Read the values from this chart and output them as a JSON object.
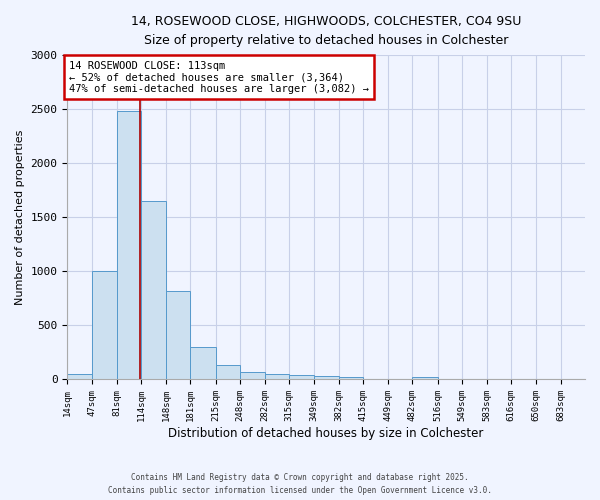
{
  "title_line1": "14, ROSEWOOD CLOSE, HIGHWOODS, COLCHESTER, CO4 9SU",
  "title_line2": "Size of property relative to detached houses in Colchester",
  "xlabel": "Distribution of detached houses by size in Colchester",
  "ylabel": "Number of detached properties",
  "bin_labels": [
    "14sqm",
    "47sqm",
    "81sqm",
    "114sqm",
    "148sqm",
    "181sqm",
    "215sqm",
    "248sqm",
    "282sqm",
    "315sqm",
    "349sqm",
    "382sqm",
    "415sqm",
    "449sqm",
    "482sqm",
    "516sqm",
    "549sqm",
    "583sqm",
    "616sqm",
    "650sqm",
    "683sqm"
  ],
  "bin_edges": [
    14,
    47,
    81,
    114,
    148,
    181,
    215,
    248,
    282,
    315,
    349,
    382,
    415,
    449,
    482,
    516,
    549,
    583,
    616,
    650,
    683,
    716
  ],
  "bar_heights": [
    50,
    1000,
    2480,
    1650,
    820,
    300,
    130,
    65,
    55,
    45,
    30,
    20,
    5,
    0,
    25,
    0,
    0,
    0,
    0,
    0,
    0
  ],
  "bar_color": "#cce0f0",
  "bar_edge_color": "#5599cc",
  "property_size": 113,
  "red_line_color": "#aa0000",
  "annotation_line1": "14 ROSEWOOD CLOSE: 113sqm",
  "annotation_line2": "← 52% of detached houses are smaller (3,364)",
  "annotation_line3": "47% of semi-detached houses are larger (3,082) →",
  "annotation_box_color": "#ffffff",
  "annotation_box_edge_color": "#cc0000",
  "ylim": [
    0,
    3000
  ],
  "yticks": [
    0,
    500,
    1000,
    1500,
    2000,
    2500,
    3000
  ],
  "footer_line1": "Contains HM Land Registry data © Crown copyright and database right 2025.",
  "footer_line2": "Contains public sector information licensed under the Open Government Licence v3.0.",
  "bg_color": "#f0f4ff",
  "grid_color": "#c8d0e8"
}
